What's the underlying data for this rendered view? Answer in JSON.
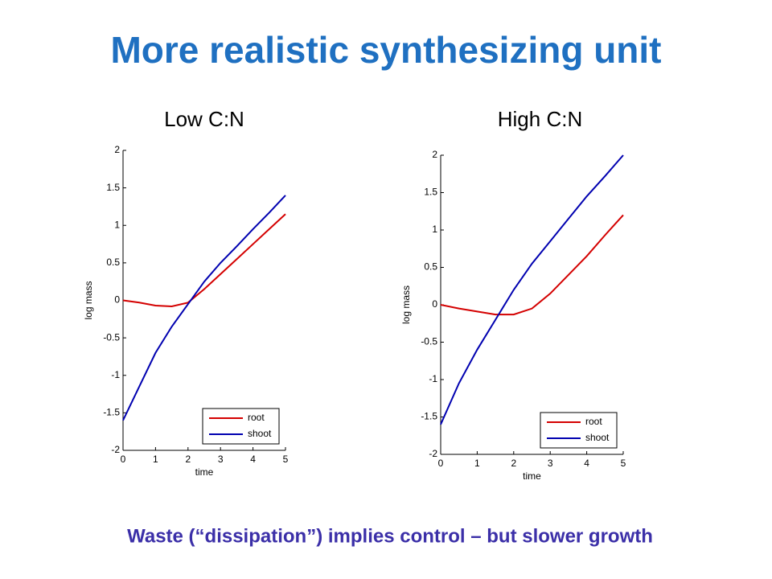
{
  "title": "More realistic synthesizing unit",
  "footer": "Waste (“dissipation”)  implies control – but slower growth",
  "chart_data": [
    {
      "type": "line",
      "title": "Low C:N",
      "xlabel": "time",
      "ylabel": "log mass",
      "x": [
        0,
        0.5,
        1,
        1.5,
        2,
        2.5,
        3,
        3.5,
        4,
        4.5,
        5
      ],
      "series": [
        {
          "name": "root",
          "color": "#d40000",
          "values": [
            0,
            -0.03,
            -0.07,
            -0.08,
            -0.03,
            0.15,
            0.35,
            0.55,
            0.75,
            0.95,
            1.15
          ]
        },
        {
          "name": "shoot",
          "color": "#0000b0",
          "values": [
            -1.6,
            -1.15,
            -0.7,
            -0.35,
            -0.05,
            0.25,
            0.5,
            0.72,
            0.95,
            1.17,
            1.4
          ]
        }
      ],
      "xlim": [
        0,
        5
      ],
      "xticks": [
        0,
        1,
        2,
        3,
        4,
        5
      ],
      "ylim": [
        -2,
        2
      ],
      "yticks": [
        -2,
        -1.5,
        -1,
        -0.5,
        0,
        0.5,
        1,
        1.5,
        2
      ],
      "legend": "lower right"
    },
    {
      "type": "line",
      "title": "High C:N",
      "xlabel": "time",
      "ylabel": "log mass",
      "x": [
        0,
        0.5,
        1,
        1.5,
        2,
        2.5,
        3,
        3.5,
        4,
        4.5,
        5
      ],
      "series": [
        {
          "name": "root",
          "color": "#d40000",
          "values": [
            0,
            -0.05,
            -0.09,
            -0.13,
            -0.13,
            -0.05,
            0.15,
            0.4,
            0.65,
            0.93,
            1.2
          ]
        },
        {
          "name": "shoot",
          "color": "#0000b0",
          "values": [
            -1.6,
            -1.05,
            -0.6,
            -0.2,
            0.2,
            0.55,
            0.85,
            1.15,
            1.45,
            1.72,
            2.0
          ]
        }
      ],
      "xlim": [
        0,
        5
      ],
      "xticks": [
        0,
        1,
        2,
        3,
        4,
        5
      ],
      "ylim": [
        -2,
        2
      ],
      "yticks": [
        -2,
        -1.5,
        -1,
        -0.5,
        0,
        0.5,
        1,
        1.5,
        2
      ],
      "legend": "lower right"
    }
  ]
}
